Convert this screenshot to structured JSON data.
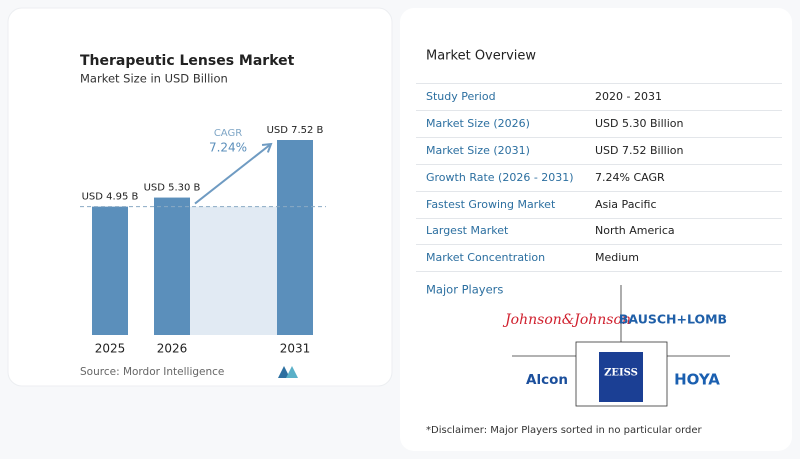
{
  "chart_data": {
    "type": "bar",
    "title": "Therapeutic Lenses Market",
    "subtitle": "Market Size in USD Billion",
    "categories": [
      "2025",
      "2026",
      "2031"
    ],
    "values": [
      4.95,
      5.3,
      7.52
    ],
    "value_labels": [
      "USD 4.95 B",
      "USD 5.30 B",
      "USD 7.52 B"
    ],
    "color": "#5b8fbb",
    "annotation": {
      "label": "CAGR",
      "value": "7.24%"
    },
    "source": "Source:  Mordor Intelligence"
  },
  "overview": {
    "title": "Market Overview",
    "rows": [
      [
        "Study Period",
        "2020 - 2031"
      ],
      [
        "Market Size (2026)",
        "USD 5.30 Billion"
      ],
      [
        "Market Size (2031)",
        "USD 7.52 Billion"
      ],
      [
        "Growth Rate (2026 - 2031)",
        "7.24% CAGR"
      ],
      [
        "Fastest Growing Market",
        "Asia Pacific"
      ],
      [
        "Largest Market",
        "North America"
      ],
      [
        "Market Concentration",
        "Medium"
      ]
    ]
  },
  "players": {
    "title": "Major Players",
    "logos": [
      "Johnson&Johnson",
      "BAUSCH+LOMB",
      "Alcon",
      "ZEISS",
      "HOYA"
    ]
  },
  "disclaimer": "*Disclaimer: Major Players sorted in no particular order"
}
